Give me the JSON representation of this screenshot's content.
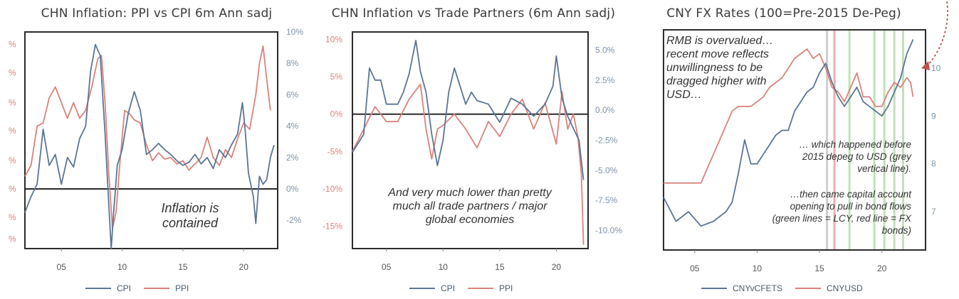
{
  "colors": {
    "cpi": "#5b7594",
    "ppi": "#d9837c",
    "axis_left": "#d9837c",
    "axis_right": "#7e93ab",
    "frame": "#2b2b2b",
    "zero": "#2b2b2b",
    "green": "#bfe2b5",
    "red": "#e9b0ae",
    "grey": "#cfcfcf"
  },
  "charts": [
    {
      "title": "CHN Inflation: PPI vs CPI 6m Ann sadj",
      "annotation": "Inflation is contained",
      "legend": [
        "CPI",
        "PPI"
      ],
      "x_ticks": [
        "05",
        "10",
        "15",
        "20"
      ],
      "right_ticks": [
        "10%",
        "8%",
        "6%",
        "4%",
        "2%",
        "0%",
        "-2%"
      ],
      "left_ticks": [
        "%",
        "%",
        "%",
        "%",
        "%",
        "%",
        "%",
        "%"
      ]
    },
    {
      "title": "CHN Inflation vs Trade Partners (6m Ann sadj)",
      "annotation": "And very much lower than pretty much all trade partners / major global economies",
      "legend": [
        "CPI",
        "PPI"
      ],
      "x_ticks": [
        "05",
        "10",
        "15",
        "20"
      ],
      "left_ticks": [
        "10%",
        "5%",
        "0%",
        "-5%",
        "-10%",
        "-15%"
      ],
      "right_ticks": [
        "5.0%",
        "2.5%",
        "0.0%",
        "-2.5%",
        "-5.0%",
        "-7.5%",
        "-10.0%"
      ]
    },
    {
      "title": "CNY FX Rates (100=Pre-2015 De-Peg)",
      "annotation_top": "RMB is overvalued… recent move reflects unwillingness to be dragged higher with USD…",
      "annotation_mid": "… which happened before 2015 depeg to USD (grey vertical line).",
      "annotation_bot": "…then came capital account opening to pull in bond flows (green lines = LCY, red line = FX bonds)",
      "legend": [
        "CNYvCFETS",
        "CNYUSD"
      ],
      "x_ticks": [
        "05",
        "10",
        "15",
        "20"
      ],
      "right_ticks": [
        "10",
        "9",
        "8",
        "7"
      ]
    }
  ],
  "chart_data": [
    {
      "type": "line",
      "title": "CHN Inflation: PPI vs CPI 6m Ann sadj",
      "x_range": [
        2002,
        2022.8
      ],
      "y_right_range": [
        -3.8,
        10
      ],
      "series": [
        {
          "name": "CPI",
          "axis": "right",
          "x": [
            2002.0,
            2002.5,
            2003.0,
            2003.5,
            2004.0,
            2004.5,
            2005.0,
            2005.5,
            2006.0,
            2006.5,
            2007.0,
            2007.4,
            2007.8,
            2008.2,
            2008.6,
            2008.9,
            2009.1,
            2009.3,
            2009.6,
            2010.0,
            2010.5,
            2011.0,
            2011.5,
            2012.0,
            2012.5,
            2013.0,
            2013.5,
            2014.0,
            2014.5,
            2015.0,
            2015.5,
            2016.0,
            2016.5,
            2017.0,
            2017.5,
            2018.0,
            2018.5,
            2019.0,
            2019.5,
            2019.9,
            2020.1,
            2020.4,
            2020.8,
            2021.0,
            2021.3,
            2021.6,
            2021.9,
            2022.2,
            2022.5
          ],
          "values": [
            -1.5,
            -0.5,
            0.3,
            3.8,
            1.5,
            2.2,
            0.3,
            2.0,
            1.4,
            3.2,
            4.0,
            7.5,
            9.2,
            8.5,
            3.5,
            -1.0,
            -3.8,
            -1.5,
            1.5,
            2.5,
            4.8,
            6.2,
            5.0,
            2.2,
            2.5,
            2.9,
            2.5,
            2.2,
            1.8,
            1.5,
            1.7,
            2.2,
            1.6,
            2.0,
            1.3,
            2.5,
            2.0,
            2.8,
            3.5,
            5.5,
            4.0,
            1.0,
            -0.5,
            -2.2,
            0.8,
            0.3,
            0.6,
            2.0,
            2.8
          ]
        },
        {
          "name": "PPI",
          "axis": "left",
          "x": [
            2002.0,
            2002.5,
            2003.0,
            2003.5,
            2004.0,
            2004.5,
            2005.0,
            2005.5,
            2006.0,
            2006.5,
            2007.0,
            2007.5,
            2008.0,
            2008.3,
            2008.6,
            2008.9,
            2009.2,
            2009.5,
            2009.8,
            2010.2,
            2010.6,
            2011.0,
            2011.5,
            2012.0,
            2012.5,
            2013.0,
            2013.5,
            2014.0,
            2014.5,
            2015.0,
            2015.5,
            2016.0,
            2016.5,
            2017.0,
            2017.5,
            2018.0,
            2018.5,
            2019.0,
            2019.5,
            2020.0,
            2020.5,
            2021.0,
            2021.3,
            2021.6,
            2021.9,
            2022.2
          ],
          "values": [
            0.8,
            1.5,
            4.0,
            4.2,
            5.8,
            6.5,
            5.5,
            4.5,
            5.5,
            4.5,
            5.0,
            6.5,
            8.3,
            8.5,
            5.5,
            1.0,
            -2.5,
            -1.5,
            1.5,
            5.0,
            4.8,
            4.4,
            4.2,
            2.8,
            1.8,
            2.3,
            1.9,
            2.0,
            1.6,
            1.8,
            1.2,
            1.6,
            2.0,
            3.3,
            2.0,
            1.5,
            2.5,
            2.0,
            3.2,
            4.2,
            3.8,
            6.0,
            8.0,
            9.1,
            7.0,
            5.0
          ]
        }
      ]
    },
    {
      "type": "line",
      "title": "CHN Inflation vs Trade Partners (6m Ann sadj)",
      "x_range": [
        2002,
        2022.8
      ],
      "y_left_range": [
        -18,
        11
      ],
      "y_right_range": [
        -11.5,
        6.5
      ],
      "series": [
        {
          "name": "CPI",
          "axis": "right",
          "x": [
            2002.0,
            2003.0,
            2003.5,
            2004.0,
            2004.5,
            2005.0,
            2006.0,
            2006.5,
            2007.0,
            2007.6,
            2008.0,
            2008.5,
            2009.0,
            2009.5,
            2010.0,
            2010.5,
            2011.0,
            2011.5,
            2012.0,
            2012.5,
            2013.0,
            2014.0,
            2015.0,
            2016.0,
            2017.0,
            2018.0,
            2019.0,
            2019.7,
            2020.0,
            2020.5,
            2021.0,
            2021.5,
            2022.0,
            2022.4
          ],
          "values": [
            -3.5,
            -2.0,
            3.5,
            2.5,
            2.5,
            0.5,
            0.5,
            1.5,
            3.0,
            5.8,
            3.2,
            1.5,
            -2.0,
            -4.6,
            -2.5,
            1.5,
            3.5,
            2.0,
            0.5,
            1.5,
            0.8,
            0.5,
            -1.0,
            1.0,
            0.5,
            -0.5,
            0.5,
            2.0,
            4.5,
            1.0,
            -0.5,
            -1.5,
            -2.5,
            -5.8
          ]
        },
        {
          "name": "PPI",
          "axis": "left",
          "x": [
            2002.0,
            2003.0,
            2004.0,
            2005.0,
            2006.0,
            2007.0,
            2008.0,
            2008.5,
            2009.0,
            2009.5,
            2010.0,
            2011.0,
            2012.0,
            2013.0,
            2014.0,
            2015.0,
            2016.0,
            2017.0,
            2018.0,
            2019.0,
            2020.0,
            2020.5,
            2021.0,
            2021.5,
            2021.9,
            2022.2,
            2022.4
          ],
          "values": [
            -5.0,
            -2.0,
            1.0,
            -1.0,
            -1.0,
            2.0,
            4.0,
            -2.0,
            -6.0,
            -2.0,
            -1.5,
            0.0,
            -2.0,
            -4.5,
            -1.0,
            -3.0,
            0.0,
            2.0,
            -2.0,
            1.5,
            -4.0,
            3.0,
            -2.0,
            0.0,
            -3.0,
            -8.0,
            -17.5
          ]
        }
      ]
    },
    {
      "type": "line",
      "title": "CNY FX Rates (100=Pre-2015 De-Peg)",
      "x_range": [
        2002.5,
        2023.5
      ],
      "y_right_range": [
        62,
        108
      ],
      "series": [
        {
          "name": "CNYvCFETS",
          "x": [
            2002.5,
            2003.5,
            2004.5,
            2005.5,
            2006.5,
            2007.5,
            2008.0,
            2008.5,
            2009.0,
            2009.5,
            2010.0,
            2010.5,
            2011.0,
            2011.5,
            2012.0,
            2012.5,
            2013.0,
            2013.5,
            2014.0,
            2014.5,
            2015.0,
            2015.5,
            2016.0,
            2016.5,
            2017.0,
            2017.5,
            2018.0,
            2018.5,
            2019.0,
            2019.5,
            2020.0,
            2020.5,
            2021.0,
            2021.5,
            2022.0,
            2022.5
          ],
          "values": [
            73,
            68,
            70,
            67,
            68,
            70,
            72,
            78,
            85,
            80,
            80,
            82,
            84,
            86,
            87,
            87,
            91,
            93,
            95,
            96,
            99,
            101,
            97,
            94,
            92,
            94,
            96,
            93,
            92,
            91,
            90,
            92,
            95,
            98,
            103,
            106
          ]
        },
        {
          "name": "CNYUSD",
          "x": [
            2002.5,
            2005.5,
            2006.0,
            2006.5,
            2007.0,
            2007.5,
            2008.0,
            2008.5,
            2009.5,
            2010.5,
            2011.0,
            2012.0,
            2013.0,
            2014.0,
            2014.5,
            2015.0,
            2015.5,
            2016.0,
            2016.5,
            2017.0,
            2017.5,
            2018.0,
            2018.5,
            2019.0,
            2019.5,
            2020.0,
            2020.5,
            2021.0,
            2021.5,
            2022.0,
            2022.3,
            2022.5
          ],
          "values": [
            76,
            76,
            79,
            82,
            85,
            88,
            91,
            92,
            92,
            94,
            96,
            98,
            102,
            104,
            102,
            103,
            100,
            96,
            95,
            93,
            96,
            99,
            94,
            94,
            92,
            92,
            95,
            97,
            96,
            98,
            97,
            94
          ]
        }
      ],
      "vertical_lines": [
        {
          "x": 2015.6,
          "kind": "grey"
        },
        {
          "x": 2016.2,
          "kind": "red"
        },
        {
          "x": 2017.4,
          "kind": "green"
        },
        {
          "x": 2019.4,
          "kind": "green"
        },
        {
          "x": 2020.2,
          "kind": "green"
        },
        {
          "x": 2021.0,
          "kind": "green"
        },
        {
          "x": 2021.7,
          "kind": "green"
        }
      ]
    }
  ]
}
